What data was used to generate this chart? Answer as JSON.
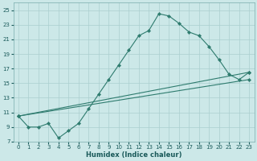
{
  "xlabel": "Humidex (Indice chaleur)",
  "bg_color": "#cce8e8",
  "grid_color": "#aacfcf",
  "line_color": "#2e7b6e",
  "xlim": [
    -0.5,
    23.5
  ],
  "ylim": [
    7,
    26
  ],
  "xticks": [
    0,
    1,
    2,
    3,
    4,
    5,
    6,
    7,
    8,
    9,
    10,
    11,
    12,
    13,
    14,
    15,
    16,
    17,
    18,
    19,
    20,
    21,
    22,
    23
  ],
  "yticks": [
    7,
    9,
    11,
    13,
    15,
    17,
    19,
    21,
    23,
    25
  ],
  "series": [
    {
      "x": [
        0,
        1,
        2,
        3,
        4,
        5,
        6,
        7,
        8,
        9,
        10,
        11,
        12,
        13,
        14,
        15,
        16,
        17,
        18,
        19,
        20,
        21,
        22,
        23
      ],
      "y": [
        10.5,
        9.0,
        9.0,
        9.5,
        7.5,
        8.5,
        9.5,
        11.5,
        13.5,
        15.5,
        17.5,
        19.5,
        21.5,
        22.2,
        24.5,
        24.2,
        23.2,
        22.0,
        21.5,
        20.0,
        18.2,
        16.2,
        15.5,
        16.5
      ],
      "markers": true
    },
    {
      "x": [
        0,
        23
      ],
      "y": [
        10.5,
        16.5
      ],
      "markers": true
    },
    {
      "x": [
        0,
        23
      ],
      "y": [
        10.5,
        15.5
      ],
      "markers": true
    }
  ],
  "xlabel_fontsize": 6,
  "tick_fontsize": 5,
  "tick_color": "#1a5a5a",
  "xlabel_color": "#1a5a5a"
}
